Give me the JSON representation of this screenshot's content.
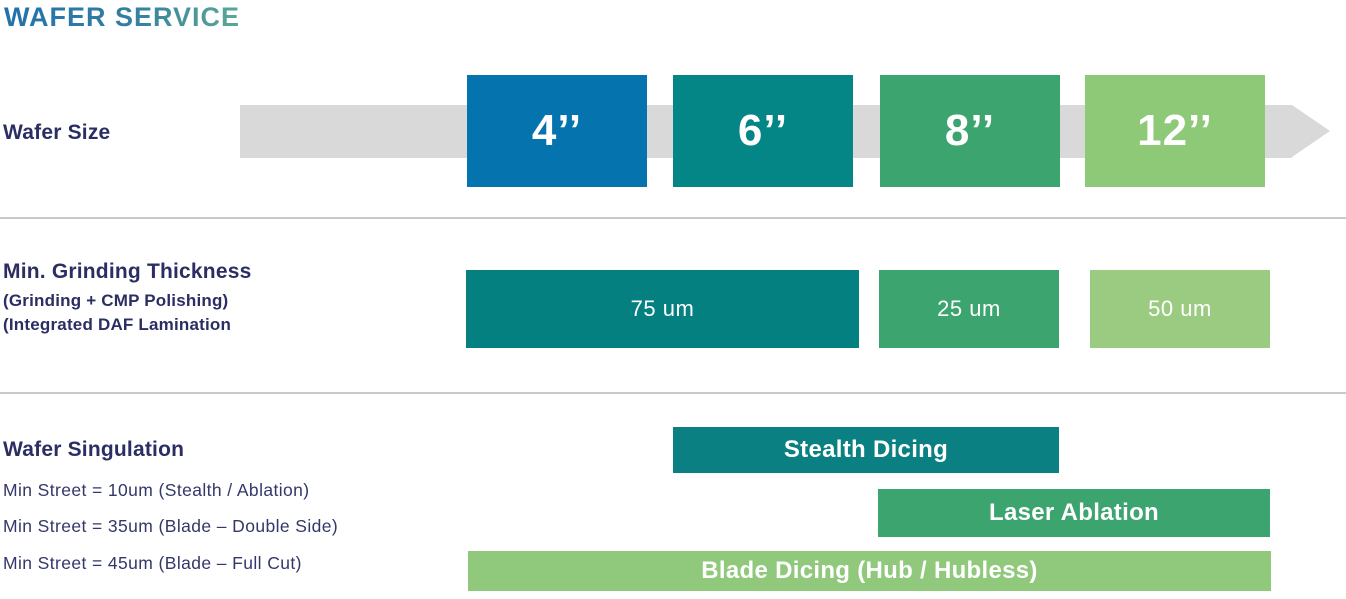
{
  "title": "WAFER SERVICE",
  "colors": {
    "title_gradient_start": "#2171ad",
    "title_gradient_end": "#5ba897",
    "label_navy": "#2b2e63",
    "arrow_gray": "#d9d9d9",
    "blue": "#0473ae",
    "teal": "#048586",
    "green": "#3ba46f",
    "light_green": "#8dc977"
  },
  "wafer_size": {
    "label": "Wafer Size",
    "sizes": [
      {
        "label": "4’’",
        "color": "#0473ae"
      },
      {
        "label": "6’’",
        "color": "#048586"
      },
      {
        "label": "8’’",
        "color": "#3ba46f"
      },
      {
        "label": "12’’",
        "color": "#8dc977"
      }
    ]
  },
  "grinding": {
    "label": "Min. Grinding Thickness",
    "notes": [
      "(Grinding + CMP Polishing)",
      "(Integrated DAF Lamination"
    ],
    "items": [
      {
        "label": "75 um",
        "color": "#058080"
      },
      {
        "label": "25 um",
        "color": "#3ba46f"
      },
      {
        "label": "50 um",
        "color": "#9bcb81"
      }
    ]
  },
  "singulation": {
    "label": "Wafer Singulation",
    "notes": [
      "Min Street = 10um (Stealth / Ablation)",
      "Min Street = 35um (Blade – Double Side)",
      "Min Street = 45um (Blade – Full Cut)"
    ],
    "bars": [
      {
        "label": "Stealth Dicing",
        "color": "#0a8082"
      },
      {
        "label": "Laser Ablation",
        "color": "#3ba46f"
      },
      {
        "label": "Blade Dicing (Hub / Hubless)",
        "color": "#90c97b"
      }
    ]
  }
}
